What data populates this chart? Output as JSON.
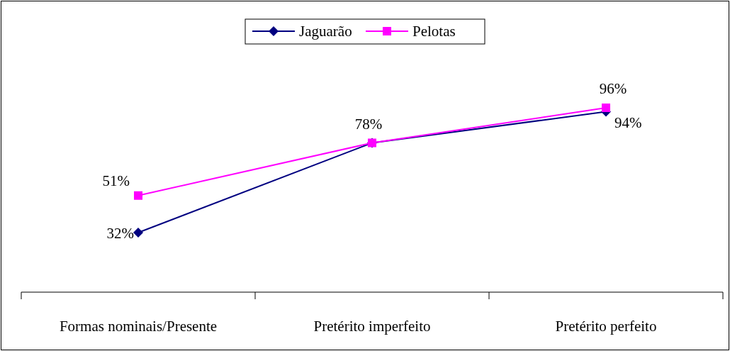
{
  "chart_data": {
    "type": "line",
    "categories": [
      "Formas nominais/Presente",
      "Pretérito imperfeito",
      "Pretérito perfeito"
    ],
    "series": [
      {
        "name": "Jaguarão",
        "color": "#000080",
        "marker": "diamond",
        "values": [
          32,
          78,
          94
        ],
        "value_labels": [
          "32%",
          null,
          "94%"
        ]
      },
      {
        "name": "Pelotas",
        "color": "#ff00ff",
        "marker": "square",
        "values": [
          51,
          78,
          96
        ],
        "value_labels": [
          "51%",
          "78%",
          "96%"
        ]
      }
    ],
    "legend": "top"
  }
}
